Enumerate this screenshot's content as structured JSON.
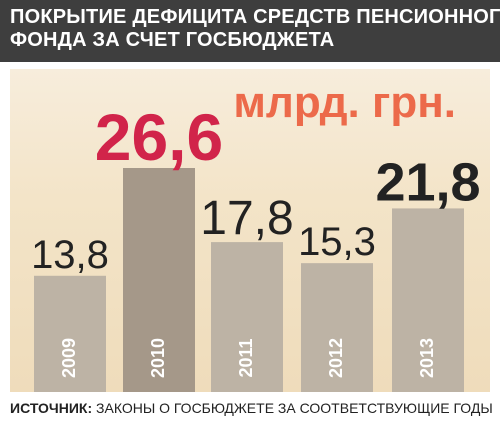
{
  "title": {
    "line1": "ПОКРЫТИЕ ДЕФИЦИТА СРЕДСТВ ПЕНСИОННОГО",
    "line2": "ФОНДА ЗА СЧЕТ ГОСБЮДЖЕТА"
  },
  "unit": "млрд. грн.",
  "source": {
    "prefix": "ИСТОЧНИК:",
    "text": " ЗАКОНЫ О ГОСБЮДЖЕТЕ ЗА СООТВЕТСТВУЮЩИЕ ГОДЫ"
  },
  "colors": {
    "bar_default": "#bdb3a5",
    "bar_highlight": "#a59889",
    "label_default": "#222222",
    "label_highlight": "#d1244a",
    "unit": "#ec6a4a",
    "title_bg": "#3e3e3e",
    "panel_bg": "#f3e4c8"
  },
  "chart_data": {
    "type": "bar",
    "categories": [
      "2009",
      "2010",
      "2011",
      "2012",
      "2013"
    ],
    "values": [
      13.8,
      26.6,
      17.8,
      15.3,
      21.8
    ],
    "value_labels": [
      "13,8",
      "26,6",
      "17,8",
      "15,3",
      "21,8"
    ],
    "highlight_index": 1,
    "ylim": [
      0,
      26.6
    ],
    "grid": false,
    "legend": "none"
  }
}
